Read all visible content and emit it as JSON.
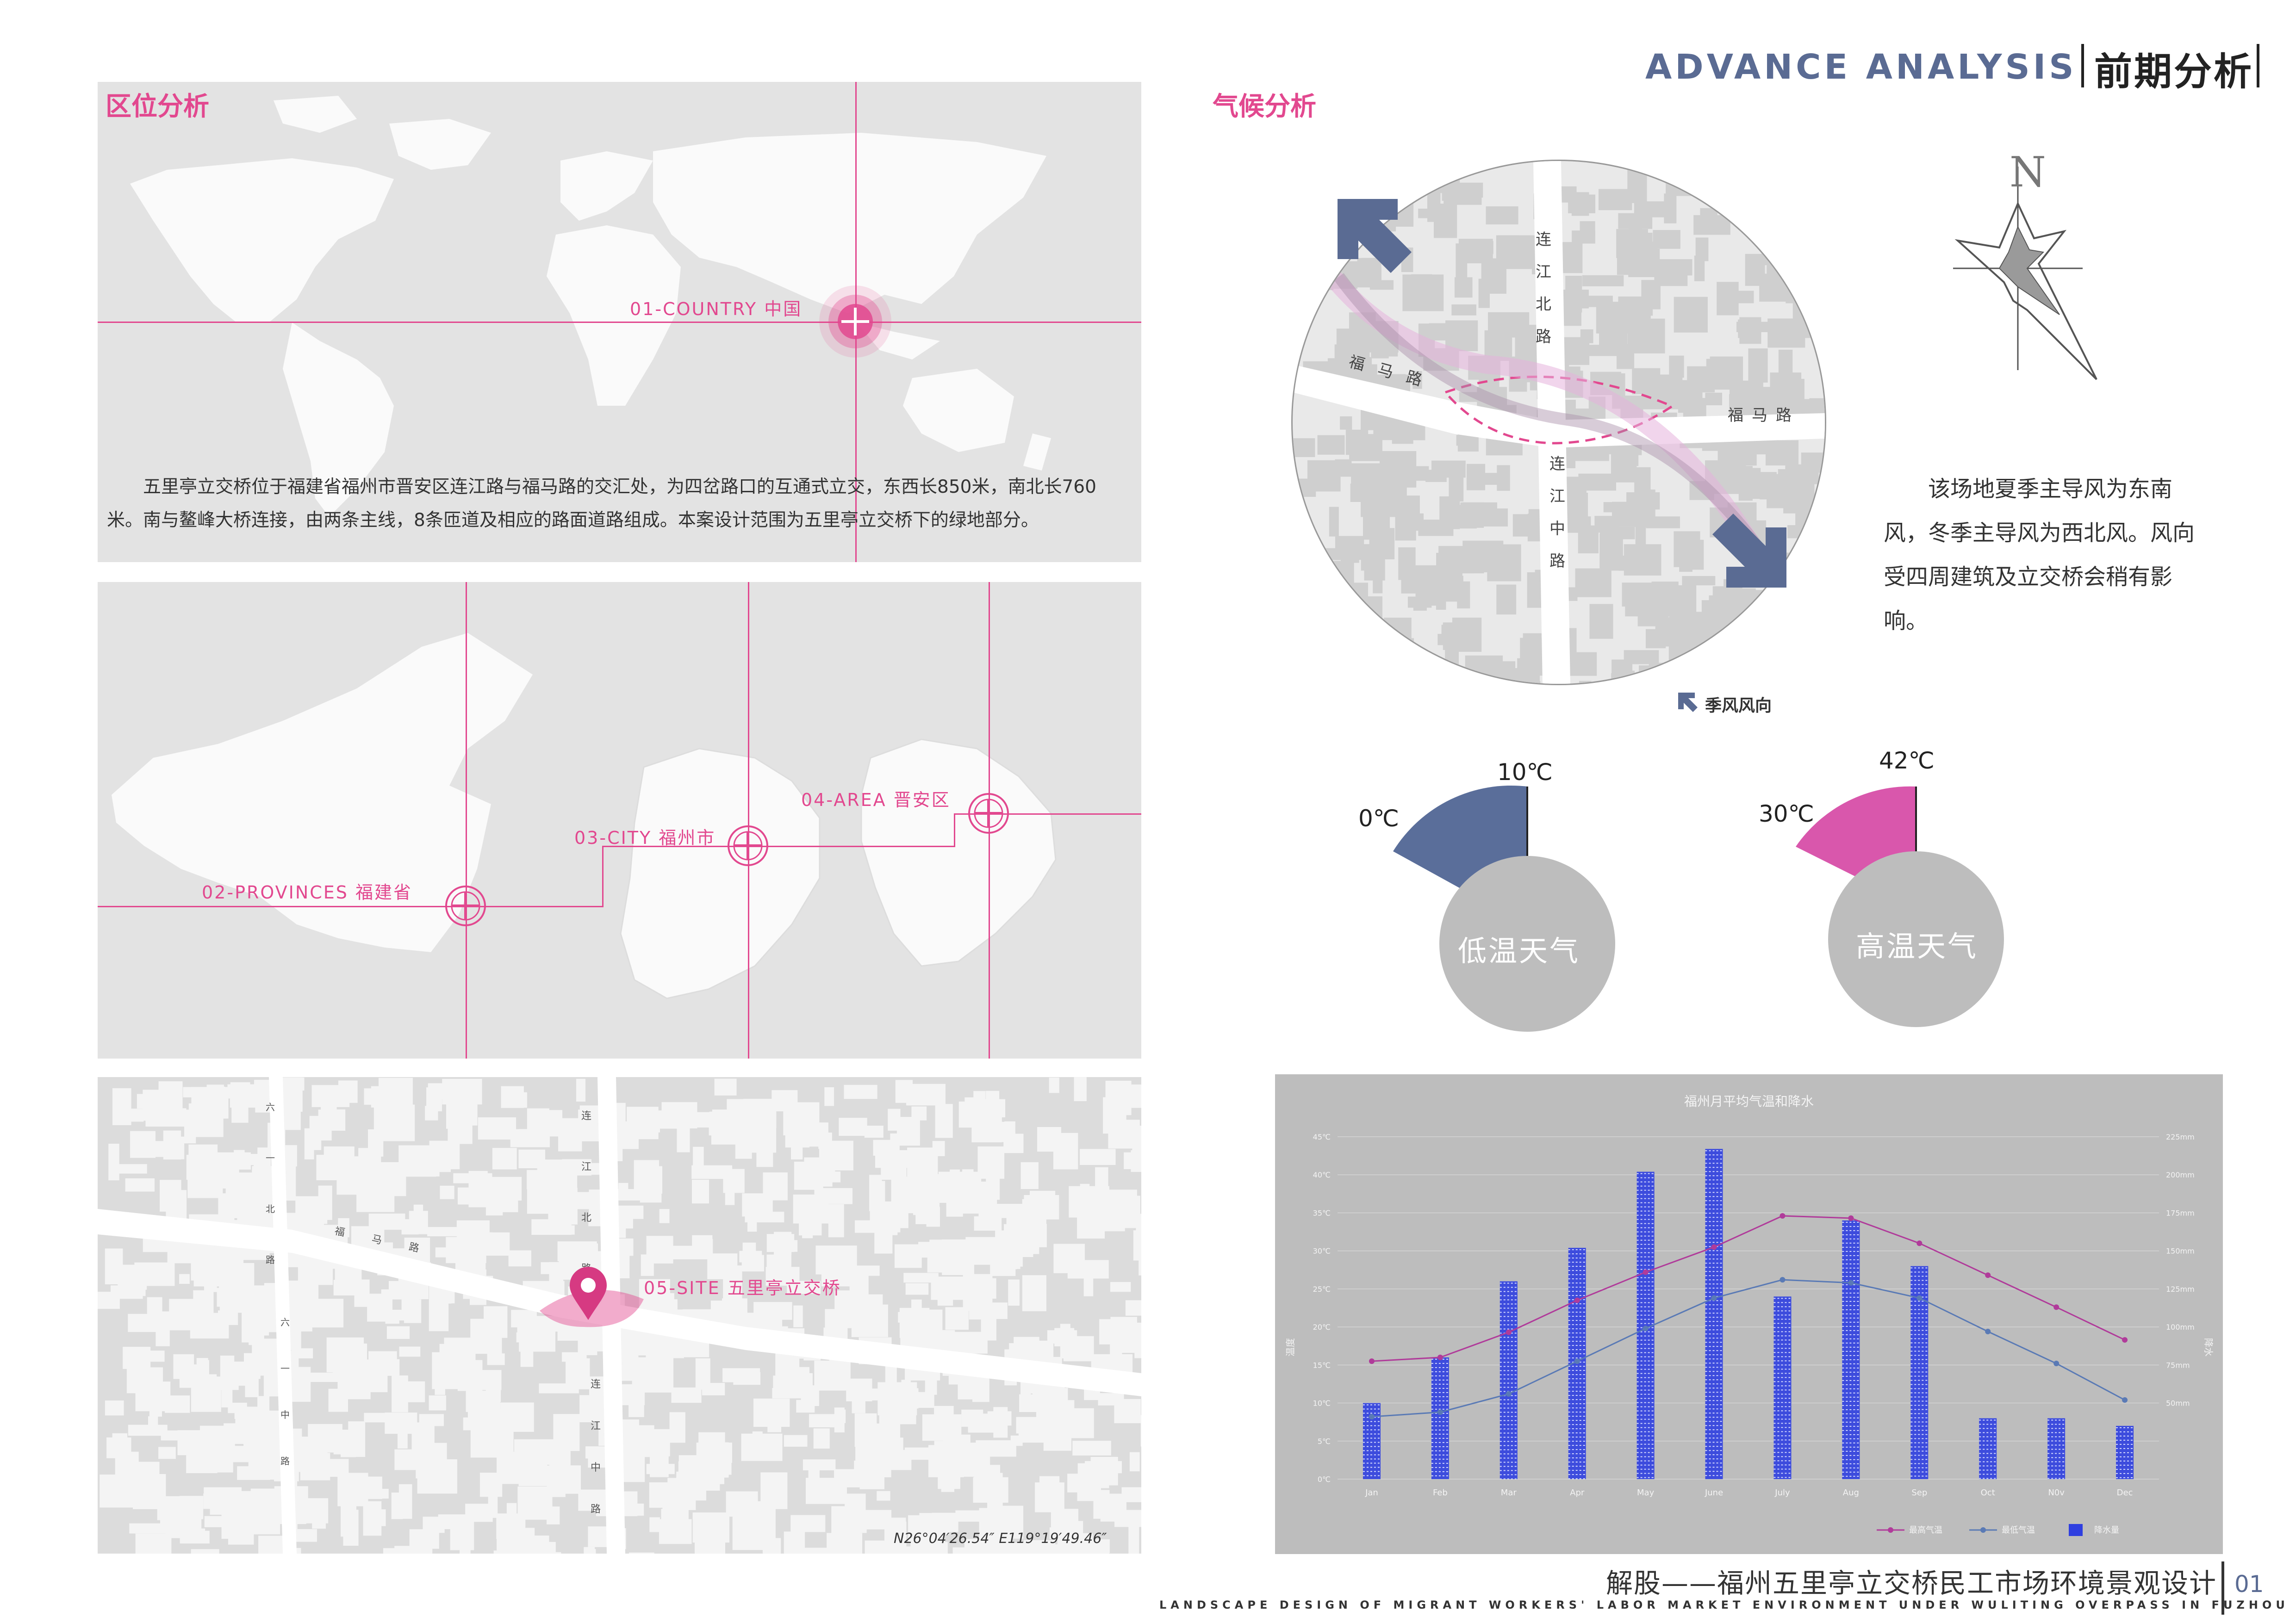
{
  "header": {
    "title_en": "ADVANCE ANALYSIS",
    "title_cn": "前期分析"
  },
  "location": {
    "title": "区位分析",
    "country_label": "01-COUNTRY 中国",
    "description": "五里亭立交桥位于福建省福州市晋安区连江路与福马路的交汇处，为四岔路口的互通式立交，东西长850米，南北长760米。南与鳌峰大桥连接，由两条主线，8条匝道及相应的路面道路组成。本案设计范围为五里亭立交桥下的绿地部分。",
    "province_label": "02-PROVINCES 福建省",
    "city_label": "03-CITY 福州市",
    "area_label": "04-AREA 晋安区",
    "site_label": "05-SITE 五里亭立交桥",
    "coords": "N26°04′26.54″  E119°19′49.46″",
    "street_labels": {
      "lianjiang_north": "连江北路",
      "fuma": "福马路",
      "lianjiang_mid": "连江中路",
      "liuyi_north": "六一北路",
      "liuyi_mid": "六一中路"
    }
  },
  "climate": {
    "title": "气候分析",
    "compass": "N",
    "wind_text": "该场地夏季主导风为东南风，冬季主导风为西北风。风向受四周建筑及立交桥会稍有影响。",
    "monsoon_legend": "季风风向",
    "roads": {
      "lianjiang_north": "连江北路",
      "fuma_west": "福马路",
      "fuma_east": "福马路",
      "lianjiang_mid": "连江中路"
    },
    "cold": {
      "label": "低温天气",
      "min": "0℃",
      "max": "10℃",
      "color": "#5a6e9a"
    },
    "hot": {
      "label": "高温天气",
      "min": "30℃",
      "max": "42℃",
      "color": "#d957ac"
    }
  },
  "chart_data": {
    "type": "bar",
    "title": "福州月平均气温和降水",
    "ylabel": "温度",
    "y2label": "降水",
    "categories": [
      "Jan",
      "Feb",
      "Mar",
      "Apr",
      "May",
      "June",
      "July",
      "Aug",
      "Sep",
      "Oct",
      "N0v",
      "Dec"
    ],
    "ylim": [
      0,
      45
    ],
    "y2lim": [
      0,
      225
    ],
    "yticks": [
      "0℃",
      "5℃",
      "10℃",
      "15℃",
      "20℃",
      "25℃",
      "30℃",
      "35℃",
      "40℃",
      "45℃"
    ],
    "y2ticks": [
      "50mm",
      "75mm",
      "100mm",
      "125mm",
      "150mm",
      "175mm",
      "200mm",
      "225mm"
    ],
    "series": [
      {
        "name": "最高气温",
        "type": "line",
        "color": "#b03b9a",
        "values": [
          15.5,
          16,
          19.3,
          23.5,
          27.2,
          30.5,
          34.6,
          34.3,
          31,
          26.8,
          22.6,
          18.3
        ]
      },
      {
        "name": "最低气温",
        "type": "line",
        "color": "#5a7ab5",
        "values": [
          8.2,
          8.8,
          11.2,
          15.5,
          19.8,
          23.8,
          26.2,
          25.8,
          23.8,
          19.4,
          15.2,
          10.4
        ]
      },
      {
        "name": "降水量",
        "type": "bar",
        "axis": "y2",
        "color": "#2f3fe0",
        "values": [
          50,
          80,
          130,
          152,
          202,
          217,
          120,
          170,
          140,
          40,
          40,
          35
        ]
      }
    ]
  },
  "footer": {
    "title_cn": "解股——福州五里亭立交桥民工市场环境景观设计",
    "title_en": "LANDSCAPE DESIGN OF MIGRANT WORKERS' LABOR MARKET ENVIRONMENT UNDER WULITING OVERPASS IN FUZHOU",
    "page": "01"
  }
}
